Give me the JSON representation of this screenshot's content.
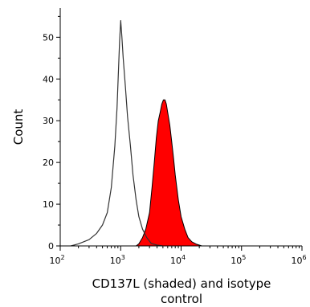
{
  "chart_data": {
    "type": "area",
    "xscale": "log",
    "xlim": [
      100,
      1000000
    ],
    "ylim": [
      0,
      57
    ],
    "x_ticks": [
      {
        "value": 100,
        "base": "10",
        "exp": "2"
      },
      {
        "value": 1000,
        "base": "10",
        "exp": "3"
      },
      {
        "value": 10000,
        "base": "10",
        "exp": "4"
      },
      {
        "value": 100000,
        "base": "10",
        "exp": "5"
      },
      {
        "value": 1000000,
        "base": "10",
        "exp": "6"
      }
    ],
    "y_ticks": [
      "0",
      "10",
      "20",
      "30",
      "40",
      "50"
    ],
    "ylabel": "Count",
    "xlabel_lines": [
      "CD137L (shaded) and isotype",
      "control"
    ],
    "grid": false,
    "legend": "none",
    "series": [
      {
        "role": "shaded",
        "fill": "#ff0000",
        "stroke": "#000000",
        "points": [
          [
            1800,
            0
          ],
          [
            2000,
            0.5
          ],
          [
            2300,
            2
          ],
          [
            2600,
            4
          ],
          [
            3000,
            8
          ],
          [
            3300,
            14
          ],
          [
            3600,
            20
          ],
          [
            3900,
            26
          ],
          [
            4200,
            30
          ],
          [
            4500,
            32
          ],
          [
            4800,
            34
          ],
          [
            5100,
            35
          ],
          [
            5400,
            35
          ],
          [
            5700,
            34
          ],
          [
            6000,
            32
          ],
          [
            6500,
            29
          ],
          [
            7000,
            25
          ],
          [
            7500,
            21
          ],
          [
            8000,
            17
          ],
          [
            9000,
            11
          ],
          [
            10000,
            7
          ],
          [
            11500,
            4
          ],
          [
            13000,
            2
          ],
          [
            15000,
            1
          ],
          [
            18000,
            0.4
          ],
          [
            22000,
            0
          ]
        ]
      },
      {
        "role": "outline",
        "fill": "none",
        "stroke": "#333333",
        "points": [
          [
            150,
            0
          ],
          [
            200,
            0.5
          ],
          [
            300,
            1.5
          ],
          [
            400,
            3
          ],
          [
            500,
            5
          ],
          [
            600,
            8
          ],
          [
            700,
            14
          ],
          [
            800,
            24
          ],
          [
            870,
            33
          ],
          [
            920,
            42
          ],
          [
            960,
            49
          ],
          [
            1000,
            54
          ],
          [
            1050,
            50
          ],
          [
            1100,
            45
          ],
          [
            1200,
            38
          ],
          [
            1300,
            31
          ],
          [
            1450,
            24
          ],
          [
            1600,
            17
          ],
          [
            1800,
            11
          ],
          [
            2000,
            7
          ],
          [
            2300,
            4
          ],
          [
            2700,
            2
          ],
          [
            3200,
            0.6
          ],
          [
            4000,
            0.2
          ],
          [
            5000,
            0
          ]
        ]
      }
    ]
  }
}
